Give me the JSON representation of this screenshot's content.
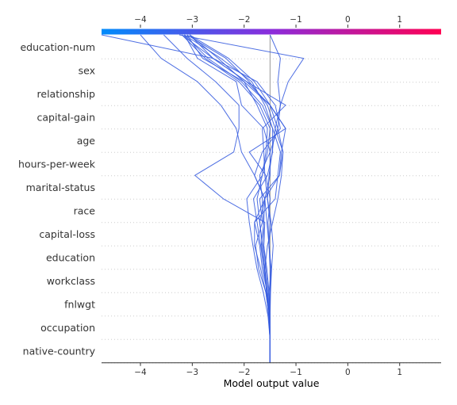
{
  "chart_data": {
    "type": "line",
    "subtype": "shap-decision-plot",
    "xlabel": "Model output value",
    "xlim": [
      -4.75,
      1.8
    ],
    "xticks": [
      -4,
      -3,
      -2,
      -1,
      0,
      1
    ],
    "base_value": -1.5,
    "features": [
      "education-num",
      "sex",
      "relationship",
      "capital-gain",
      "age",
      "hours-per-week",
      "marital-status",
      "race",
      "capital-loss",
      "education",
      "workclass",
      "fnlwgt",
      "occupation",
      "native-country"
    ],
    "colorbar": {
      "colors": [
        "#008bfb",
        "#8b2cdb",
        "#ff0052"
      ],
      "range": [
        -4.75,
        1.8
      ]
    },
    "line_color": "#3b5fe0",
    "grid": "dotted horizontal per feature",
    "series": [
      {
        "values": [
          -1.5,
          -1.5,
          -1.5,
          -1.52,
          -1.48,
          -1.52,
          -1.5,
          -1.55,
          -1.52,
          -1.46,
          -1.4,
          -1.3,
          -1.35,
          -1.3,
          -1.5
        ]
      },
      {
        "values": [
          -1.5,
          -1.5,
          -1.5,
          -1.49,
          -1.47,
          -1.44,
          -1.48,
          -1.55,
          -1.6,
          -1.62,
          -1.65,
          -1.2,
          -1.95,
          -2.6,
          -4.75
        ]
      },
      {
        "values": [
          -1.5,
          -1.5,
          -1.51,
          -1.5,
          -1.5,
          -1.52,
          -1.54,
          -1.5,
          -1.58,
          -1.9,
          -1.2,
          -1.5,
          -1.8,
          -2.3,
          -3.05
        ]
      },
      {
        "values": [
          -1.5,
          -1.5,
          -1.53,
          -1.56,
          -1.6,
          -1.65,
          -1.7,
          -1.6,
          -1.32,
          -1.28,
          -1.2,
          -1.5,
          -2.0,
          -2.5,
          -3.05
        ]
      },
      {
        "values": [
          -1.5,
          -1.5,
          -1.51,
          -1.55,
          -1.6,
          -1.55,
          -1.45,
          -1.35,
          -1.28,
          -1.25,
          -1.35,
          -1.5,
          -1.95,
          -2.6,
          -3.05
        ]
      },
      {
        "values": [
          -1.5,
          -1.5,
          -1.52,
          -1.58,
          -1.72,
          -1.78,
          -1.65,
          -1.7,
          -1.32,
          -1.25,
          -1.4,
          -1.55,
          -1.9,
          -2.35,
          -3.1
        ]
      },
      {
        "values": [
          -1.5,
          -1.5,
          -1.52,
          -1.55,
          -1.65,
          -1.7,
          -1.8,
          -1.4,
          -1.35,
          -1.3,
          -1.45,
          -1.65,
          -2.05,
          -2.7,
          -3.15
        ]
      },
      {
        "values": [
          -1.5,
          -1.5,
          -1.51,
          -1.5,
          -1.48,
          -1.52,
          -1.56,
          -1.6,
          -1.8,
          -1.65,
          -1.3,
          -1.4,
          -1.75,
          -2.6,
          -3.2
        ]
      },
      {
        "values": [
          -1.5,
          -1.5,
          -1.54,
          -1.63,
          -1.75,
          -1.83,
          -1.9,
          -1.95,
          -1.65,
          -1.55,
          -1.5,
          -1.7,
          -2.1,
          -2.75,
          -3.2
        ]
      },
      {
        "values": [
          -1.5,
          -1.5,
          -1.52,
          -1.58,
          -1.68,
          -1.8,
          -1.8,
          -1.6,
          -1.5,
          -1.5,
          -1.62,
          -2.05,
          -2.15,
          -2.9,
          -3.15
        ]
      },
      {
        "values": [
          -1.5,
          -1.5,
          -1.52,
          -1.56,
          -1.62,
          -1.68,
          -1.75,
          -1.82,
          -1.55,
          -1.45,
          -1.45,
          -1.6,
          -1.85,
          -2.45,
          -3.15
        ]
      },
      {
        "values": [
          -1.5,
          -1.5,
          -1.51,
          -1.52,
          -1.56,
          -1.62,
          -1.6,
          -2.4,
          -2.95,
          -2.2,
          -2.1,
          -2.1,
          -2.55,
          -3.1,
          -3.55
        ]
      },
      {
        "values": [
          -1.5,
          -1.5,
          -1.51,
          -1.55,
          -1.62,
          -1.67,
          -1.62,
          -1.6,
          -1.8,
          -2.05,
          -2.15,
          -2.45,
          -2.9,
          -3.6,
          -4.0
        ]
      },
      {
        "values": [
          -1.5,
          -1.5,
          -1.53,
          -1.57,
          -1.6,
          -1.64,
          -1.7,
          -1.75,
          -1.65,
          -1.58,
          -1.55,
          -1.75,
          -2.0,
          -2.8,
          -3.1
        ]
      },
      {
        "values": [
          -1.5,
          -1.5,
          -1.51,
          -1.53,
          -1.58,
          -1.62,
          -1.63,
          -1.65,
          -1.7,
          -1.5,
          -1.35,
          -1.3,
          -1.15,
          -0.85,
          -3.25
        ]
      }
    ]
  }
}
